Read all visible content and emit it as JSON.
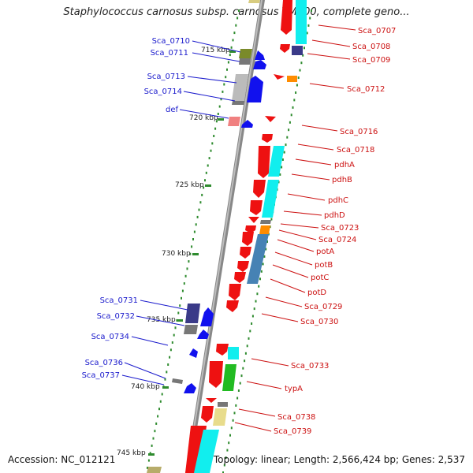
{
  "title": "Staphylococcus carnosus subsp. carnosus TM300, complete geno...",
  "accession": "Accession: NC_012121",
  "summary": "Topology: linear; Length: 2,566,424 bp; Genes: 2,537",
  "colors": {
    "axis": "#888888",
    "scale_dots": "#2e8b2e",
    "left_label": "#1a1acc",
    "right_label": "#cc1111",
    "red": "#ee1111",
    "blue": "#1111ee",
    "cyan": "#11eeee",
    "navy": "#3a3a88",
    "gray": "#bbbbbb",
    "darkgray": "#777777",
    "orange": "#ff8c00",
    "steel": "#4682b4",
    "olive": "#7a8a2a",
    "green": "#22bb22",
    "pink": "#f08080",
    "khaki": "#e8dc8c"
  },
  "scale_labels": [
    "715 kbp",
    "720 kbp",
    "725 kbp",
    "730 kbp",
    "735 kbp",
    "740 kbp",
    "745 kbp"
  ],
  "left_genes": [
    "Sca_0710",
    "Sca_0711",
    "Sca_0713",
    "Sca_0714",
    "def",
    "Sca_0731",
    "Sca_0732",
    "Sca_0734",
    "Sca_0736",
    "Sca_0737"
  ],
  "right_genes": [
    "Sca_0707",
    "Sca_0708",
    "Sca_0709",
    "Sca_0712",
    "Sca_0716",
    "Sca_0718",
    "pdhA",
    "pdhB",
    "pdhC",
    "pdhD",
    "Sca_0723",
    "Sca_0724",
    "potA",
    "potB",
    "potC",
    "potD",
    "Sca_0729",
    "Sca_0730",
    "Sca_0733",
    "typA",
    "Sca_0738",
    "Sca_0739"
  ]
}
